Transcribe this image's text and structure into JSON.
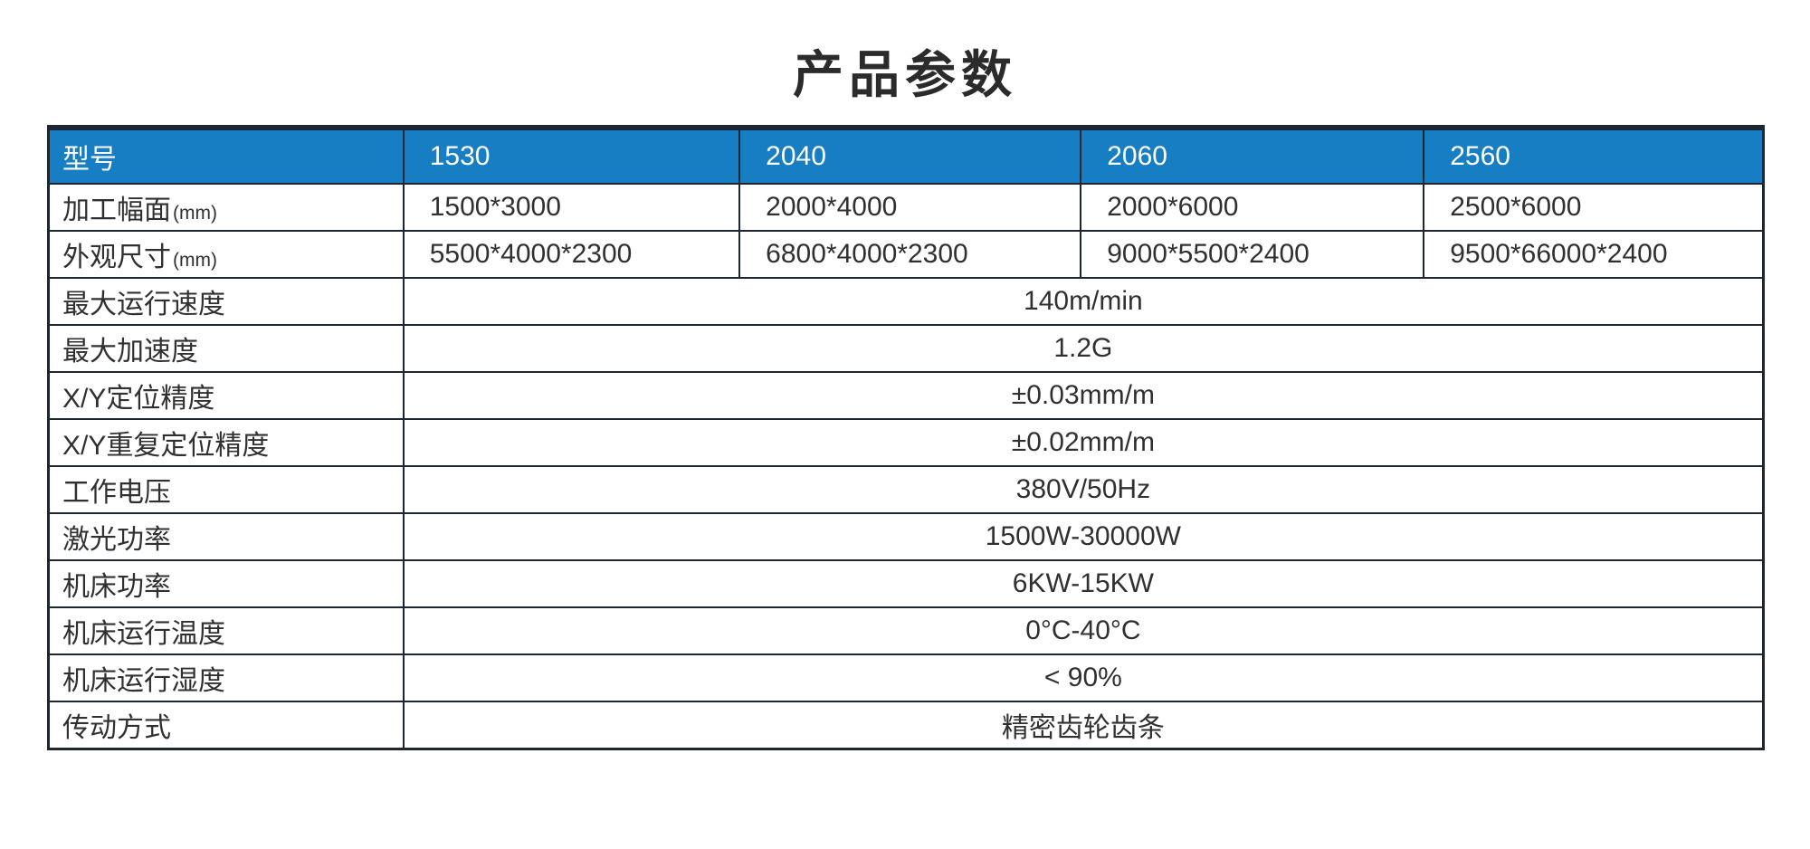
{
  "title": "产品参数",
  "colors": {
    "accent_blue": "#187EC4",
    "border_dark": "#1E2630",
    "header_text": "#FFFFFF"
  },
  "table": {
    "header": {
      "label": "型号",
      "models": [
        "1530",
        "2040",
        "2060",
        "2560"
      ]
    },
    "dimension_rows": [
      {
        "label": "加工幅面",
        "unit": "(mm)",
        "values": [
          "1500*3000",
          "2000*4000",
          "2000*6000",
          "2500*6000"
        ]
      },
      {
        "label": "外观尺寸",
        "unit": "(mm)",
        "values": [
          "5500*4000*2300",
          "6800*4000*2300",
          "9000*5500*2400",
          "9500*66000*2400"
        ]
      }
    ],
    "spec_rows": [
      {
        "label": "最大运行速度",
        "value": "140m/min"
      },
      {
        "label": "最大加速度",
        "value": "1.2G"
      },
      {
        "label": "X/Y定位精度",
        "value": "±0.03mm/m"
      },
      {
        "label": "X/Y重复定位精度",
        "value": "±0.02mm/m"
      },
      {
        "label": "工作电压",
        "value": "380V/50Hz"
      },
      {
        "label": "激光功率",
        "value": "1500W-30000W"
      },
      {
        "label": "机床功率",
        "value": "6KW-15KW"
      },
      {
        "label": "机床运行温度",
        "value": "0°C-40°C"
      },
      {
        "label": "机床运行湿度",
        "value": "< 90%"
      },
      {
        "label": "传动方式",
        "value": "精密齿轮齿条"
      }
    ]
  }
}
